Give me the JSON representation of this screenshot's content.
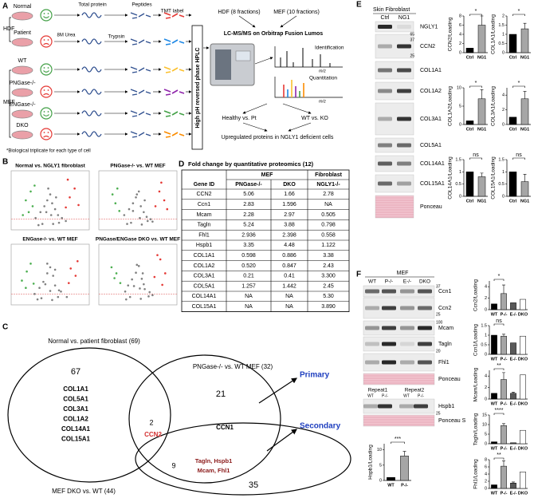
{
  "panel_labels": [
    "A",
    "B",
    "C",
    "D",
    "E",
    "F"
  ],
  "workflow": {
    "cells": [
      "Normal",
      "Patient",
      "WT",
      "PNGase-/-",
      "ENGase-/-",
      "DKO"
    ],
    "groups": [
      "HDF",
      "MEF"
    ],
    "steps": [
      "8M Urea",
      "Total protein",
      "Trypsin",
      "Peptides",
      "TMT label"
    ],
    "hplc": "High pH reversed phase HPLC",
    "fractions": [
      "HDF (8 fractions)",
      "MEF (10 fractions)"
    ],
    "ms": "LC-MS/MS on Orbitrap Fusion Lumos",
    "spectra": [
      "Identification",
      "Quantitation"
    ],
    "mz": [
      "m/z",
      "m/z"
    ],
    "comparisons": [
      "Healthy vs. Pt",
      "WT vs. KO"
    ],
    "result": "Upregulated proteins in NGLY1 deficient cells",
    "footnote": "*Biological triplicate for each type of cell"
  },
  "volcano_plots": [
    {
      "type": "scatter",
      "title": "Normal vs. NGLY1 fibroblast",
      "xlim": [
        -4,
        4
      ],
      "ylim": [
        0,
        10
      ],
      "series": [
        {
          "color": "#808080",
          "x": [
            -1.5,
            -1,
            -0.6,
            -0.3,
            0,
            0.2,
            0.5,
            0.8,
            1.2,
            1.6,
            -0.8,
            0.3,
            -0.2,
            0.9,
            -1.2,
            0.1,
            0.6,
            -0.4
          ],
          "y": [
            2,
            3,
            4,
            5,
            6,
            4.5,
            3.5,
            2.5,
            2,
            1.5,
            1,
            1,
            7,
            1.2,
            0.8,
            2.5,
            5.5,
            3
          ]
        },
        {
          "color": "#4caf50",
          "x": [
            -2.5,
            -2,
            -1.8,
            -2.2,
            -1.6,
            -2.8
          ],
          "y": [
            5,
            6.5,
            4,
            3,
            7.5,
            2.5
          ]
        },
        {
          "color": "#e53935",
          "x": [
            2.5,
            2,
            1.6,
            2.9,
            1.8
          ],
          "y": [
            7,
            5.5,
            3.8,
            4.2,
            8.5
          ]
        }
      ]
    },
    {
      "type": "scatter",
      "title": "PNGase-/- vs. WT MEF",
      "xlim": [
        -4,
        4
      ],
      "ylim": [
        0,
        10
      ],
      "series": [
        {
          "color": "#808080",
          "x": [
            -1.4,
            -0.9,
            -0.5,
            -0.2,
            0.1,
            0.3,
            0.6,
            0.9,
            1.3,
            1.5,
            -0.7,
            0.4,
            -0.1,
            1,
            -1.1,
            0.2,
            0.7,
            -0.5
          ],
          "y": [
            2.5,
            3.5,
            4.5,
            5.5,
            6.5,
            4,
            3,
            2.2,
            1.8,
            1.4,
            1.2,
            0.9,
            6,
            1.5,
            1,
            2,
            5,
            3.2
          ]
        },
        {
          "color": "#4caf50",
          "x": [
            -2.3,
            -2.6,
            -1.9,
            -2.1
          ],
          "y": [
            4.5,
            6,
            3.2,
            7
          ]
        },
        {
          "color": "#e53935",
          "x": [
            2.2,
            2.7,
            1.8,
            2.4,
            3
          ],
          "y": [
            6.5,
            5,
            4,
            8,
            3.5
          ]
        }
      ]
    },
    {
      "type": "scatter",
      "title": "ENGase-/- vs. WT MEF",
      "xlim": [
        -4,
        4
      ],
      "ylim": [
        0,
        10
      ],
      "series": [
        {
          "color": "#808080",
          "x": [
            -1.6,
            -1.1,
            -0.7,
            -0.3,
            0,
            0.3,
            0.5,
            0.9,
            1.1,
            1.7,
            -0.9,
            0.2,
            -0.3,
            0.8,
            -1.3,
            0,
            0.5,
            -0.5
          ],
          "y": [
            1.8,
            2.8,
            3.8,
            5.2,
            6.2,
            4.8,
            3.2,
            2.4,
            2.2,
            1.3,
            1.1,
            0.8,
            6.8,
            1.3,
            0.9,
            2.3,
            5.8,
            3.4
          ]
        },
        {
          "color": "#4caf50",
          "x": [
            -2.4,
            -2.9,
            -2,
            -1.7,
            -2.5
          ],
          "y": [
            5.5,
            4,
            6.8,
            3.5,
            2.8
          ]
        },
        {
          "color": "#e53935",
          "x": [
            2.1,
            2.6,
            1.9,
            2.8
          ],
          "y": [
            6,
            4.8,
            3.6,
            7.2
          ]
        }
      ]
    },
    {
      "type": "scatter",
      "title": "PNGase/ENGase DKO vs. WT MEF",
      "xlim": [
        -4,
        4
      ],
      "ylim": [
        0,
        10
      ],
      "series": [
        {
          "color": "#808080",
          "x": [
            -1.3,
            -1,
            -0.6,
            -0.2,
            0.1,
            0.4,
            0.6,
            0.7,
            1.2,
            1.5,
            -0.8,
            0.3,
            -0.1,
            1.1,
            -1.2,
            0.2,
            0.5,
            -0.4
          ],
          "y": [
            2.2,
            3.2,
            4.2,
            5.3,
            6.4,
            4.3,
            3.4,
            2.6,
            2.1,
            1.6,
            1.3,
            1,
            6.6,
            1.4,
            0.9,
            2.7,
            5.2,
            3.1
          ]
        },
        {
          "color": "#4caf50",
          "x": [
            -2.2,
            -2.7,
            -1.8,
            -2.4
          ],
          "y": [
            5.2,
            6.2,
            3.6,
            4.4
          ]
        },
        {
          "color": "#e53935",
          "x": [
            2.3,
            2.8,
            1.7,
            2.5,
            2
          ],
          "y": [
            7.5,
            5.2,
            4.6,
            3.3,
            8.2
          ]
        }
      ]
    }
  ],
  "table": {
    "title": "Fold change by quantitative proteomics (12)",
    "group_headers": [
      "MEF",
      "Fibroblast"
    ],
    "columns": [
      "Gene ID",
      "PNGase-/-",
      "DKO",
      "NGLY1-/-"
    ],
    "rows": [
      [
        "CCN2",
        "5.06",
        "1.66",
        "2.78"
      ],
      [
        "Ccn1",
        "2.83",
        "1.596",
        "NA"
      ],
      [
        "Mcam",
        "2.28",
        "2.97",
        "0.505"
      ],
      [
        "Tagln",
        "5.24",
        "3.88",
        "0.798"
      ],
      [
        "Fhl1",
        "2.936",
        "2.398",
        "0.558"
      ],
      [
        "Hspb1",
        "3.35",
        "4.48",
        "1.122"
      ],
      [
        "COL1A1",
        "0.598",
        "0.886",
        "3.38"
      ],
      [
        "COL1A2",
        "0.520",
        "0.847",
        "2.43"
      ],
      [
        "COL3A1",
        "0.21",
        "0.41",
        "3.300"
      ],
      [
        "COL5A1",
        "1.257",
        "1.442",
        "2.45"
      ],
      [
        "COL14A1",
        "NA",
        "NA",
        "5.30"
      ],
      [
        "COL15A1",
        "NA",
        "NA",
        "3.890"
      ]
    ]
  },
  "venn": {
    "sets": [
      "Normal vs. patient fibroblast (69)",
      "PNGase-/- vs. WT MEF (32)",
      "MEF DKO vs. WT (44)"
    ],
    "regions": [
      {
        "count": "67",
        "genes": [
          "COL1A1",
          "COL5A1",
          "COL3A1",
          "COL1A2",
          "COL14A1",
          "COL15A1"
        ]
      },
      {
        "count": "2",
        "genes": [
          "CCN2"
        ]
      },
      {
        "count": "21",
        "genes": [
          "CCN1"
        ]
      },
      {
        "count": "9",
        "genes": [
          "Tagln, Hspb1",
          "Mcam, Fhl1"
        ]
      },
      {
        "count": "35",
        "genes": []
      }
    ],
    "arrows": [
      "Primary",
      "Secondary"
    ]
  },
  "blots_e": {
    "title": "Skin Fibroblast",
    "lanes": [
      "Ctrl",
      "NG1"
    ],
    "proteins": [
      "NGLY1",
      "CCN2",
      "COL1A1",
      "COL1A2",
      "COL3A1",
      "COL5A1",
      "COL14A1",
      "COL15A1",
      "Ponceau"
    ],
    "mw": [
      "65",
      "37",
      "25"
    ]
  },
  "bars_e": [
    {
      "type": "bar",
      "ylabel": "CCN2/Loading",
      "categories": [
        "Ctrl",
        "NG1"
      ],
      "values": [
        1,
        6
      ],
      "errors": [
        0,
        2
      ],
      "ylim": [
        0,
        8
      ],
      "yticks": [
        0,
        2,
        4,
        6,
        8
      ],
      "sig": "*",
      "colors": [
        "#000000",
        "#a6a6a6"
      ]
    },
    {
      "type": "bar",
      "ylabel": "COL1A1/Loading",
      "categories": [
        "Ctrl",
        "NG1"
      ],
      "values": [
        1,
        1.3
      ],
      "errors": [
        0,
        0.3
      ],
      "ylim": [
        0,
        2
      ],
      "yticks": [
        0,
        0.5,
        1,
        1.5,
        2
      ],
      "sig": "*",
      "colors": [
        "#000000",
        "#a6a6a6"
      ]
    },
    {
      "type": "bar",
      "ylabel": "COL1A2/Loading",
      "categories": [
        "Ctrl",
        "NG1"
      ],
      "values": [
        1,
        7
      ],
      "errors": [
        0,
        2.5
      ],
      "ylim": [
        0,
        10
      ],
      "yticks": [
        0,
        5,
        10
      ],
      "sig": "*",
      "colors": [
        "#000000",
        "#a6a6a6"
      ]
    },
    {
      "type": "bar",
      "ylabel": "COL3A1/Loading",
      "categories": [
        "Ctrl",
        "NG1"
      ],
      "values": [
        1,
        3.5
      ],
      "errors": [
        0,
        1
      ],
      "ylim": [
        0,
        5
      ],
      "yticks": [
        0,
        2,
        4
      ],
      "sig": "*",
      "colors": [
        "#000000",
        "#a6a6a6"
      ]
    },
    {
      "type": "bar",
      "ylabel": "COL14A1/Loading",
      "categories": [
        "Ctrl",
        "NG1"
      ],
      "values": [
        1,
        0.8
      ],
      "errors": [
        0,
        0.15
      ],
      "ylim": [
        0,
        1.5
      ],
      "yticks": [
        0,
        0.5,
        1,
        1.5
      ],
      "sig": "ns",
      "colors": [
        "#000000",
        "#a6a6a6"
      ]
    },
    {
      "type": "bar",
      "ylabel": "COL15A1/Loading",
      "categories": [
        "Ctrl",
        "NG1"
      ],
      "values": [
        1,
        0.6
      ],
      "errors": [
        0,
        0.3
      ],
      "ylim": [
        0,
        1.5
      ],
      "yticks": [
        0,
        0.5,
        1,
        1.5
      ],
      "sig": "ns",
      "colors": [
        "#000000",
        "#a6a6a6"
      ]
    }
  ],
  "blots_f": {
    "title": "MEF",
    "lanes": [
      "WT",
      "P-/-",
      "E-/-",
      "DKO"
    ],
    "proteins": [
      "Ccn1",
      "Ccn2",
      "Mcam",
      "Tagln",
      "Fhl1",
      "Ponceau"
    ],
    "repeats": [
      "Repeat1",
      "Repeat2"
    ],
    "repeat_lanes": [
      "WT",
      "P-/-"
    ],
    "repeat_proteins": [
      "Hspb1",
      "Ponceau S"
    ],
    "mw": [
      "37",
      "25",
      "100",
      "20",
      "25"
    ]
  },
  "bars_f": [
    {
      "type": "bar",
      "ylabel": "Ccn2/Loading",
      "categories": [
        "WT",
        "P-/-",
        "E-/-",
        "DKO"
      ],
      "values": [
        1,
        2.8,
        1.2,
        1.8
      ],
      "errors": [
        0,
        1.5,
        0,
        0
      ],
      "ylim": [
        0,
        5
      ],
      "yticks": [
        0,
        2,
        4
      ],
      "sig": "*",
      "colors": [
        "#000000",
        "#a6a6a6",
        "#595959",
        "#ffffff"
      ]
    },
    {
      "type": "bar",
      "ylabel": "Ccn1/Loading",
      "categories": [
        "WT",
        "P-/-",
        "E-/-",
        "DKO"
      ],
      "values": [
        1,
        0.95,
        0.6,
        0.95
      ],
      "errors": [
        0,
        0.1,
        0,
        0
      ],
      "ylim": [
        0,
        1.5
      ],
      "yticks": [
        0,
        0.5,
        1,
        1.5
      ],
      "sig": "ns",
      "colors": [
        "#000000",
        "#a6a6a6",
        "#595959",
        "#ffffff"
      ]
    },
    {
      "type": "bar",
      "ylabel": "Mcam/Loading",
      "categories": [
        "WT",
        "P-/-",
        "E-/-",
        "DKO"
      ],
      "values": [
        1,
        3.4,
        1,
        4.2
      ],
      "errors": [
        0,
        1.2,
        0.2,
        0
      ],
      "ylim": [
        0,
        5
      ],
      "yticks": [
        0,
        2,
        4
      ],
      "sig": "**",
      "colors": [
        "#000000",
        "#a6a6a6",
        "#595959",
        "#ffffff"
      ]
    },
    {
      "type": "bar",
      "ylabel": "Tagln/Loading",
      "categories": [
        "WT",
        "P-/-",
        "E-/-",
        "DKO"
      ],
      "values": [
        1,
        9.5,
        0.5,
        7
      ],
      "errors": [
        0,
        1,
        0,
        0
      ],
      "ylim": [
        0,
        15
      ],
      "yticks": [
        0,
        5,
        10,
        15
      ],
      "sig": "****",
      "colors": [
        "#000000",
        "#a6a6a6",
        "#595959",
        "#ffffff"
      ]
    },
    {
      "type": "bar",
      "ylabel": "Fhl1/Loading",
      "categories": [
        "WT",
        "P-/-",
        "E-/-",
        "DKO"
      ],
      "values": [
        1,
        6.2,
        1.5,
        4.6
      ],
      "errors": [
        0,
        1.5,
        0.3,
        0
      ],
      "ylim": [
        0,
        8
      ],
      "yticks": [
        0,
        2,
        4,
        6,
        8
      ],
      "sig": "**",
      "colors": [
        "#000000",
        "#a6a6a6",
        "#595959",
        "#ffffff"
      ]
    },
    {
      "type": "bar",
      "ylabel": "Hspb1/Loading",
      "categories": [
        "WT",
        "P-/-"
      ],
      "values": [
        1,
        8
      ],
      "errors": [
        0,
        1.5
      ],
      "ylim": [
        0,
        12
      ],
      "yticks": [
        0,
        5,
        10
      ],
      "sig": "***",
      "colors": [
        "#000000",
        "#a6a6a6"
      ]
    }
  ]
}
